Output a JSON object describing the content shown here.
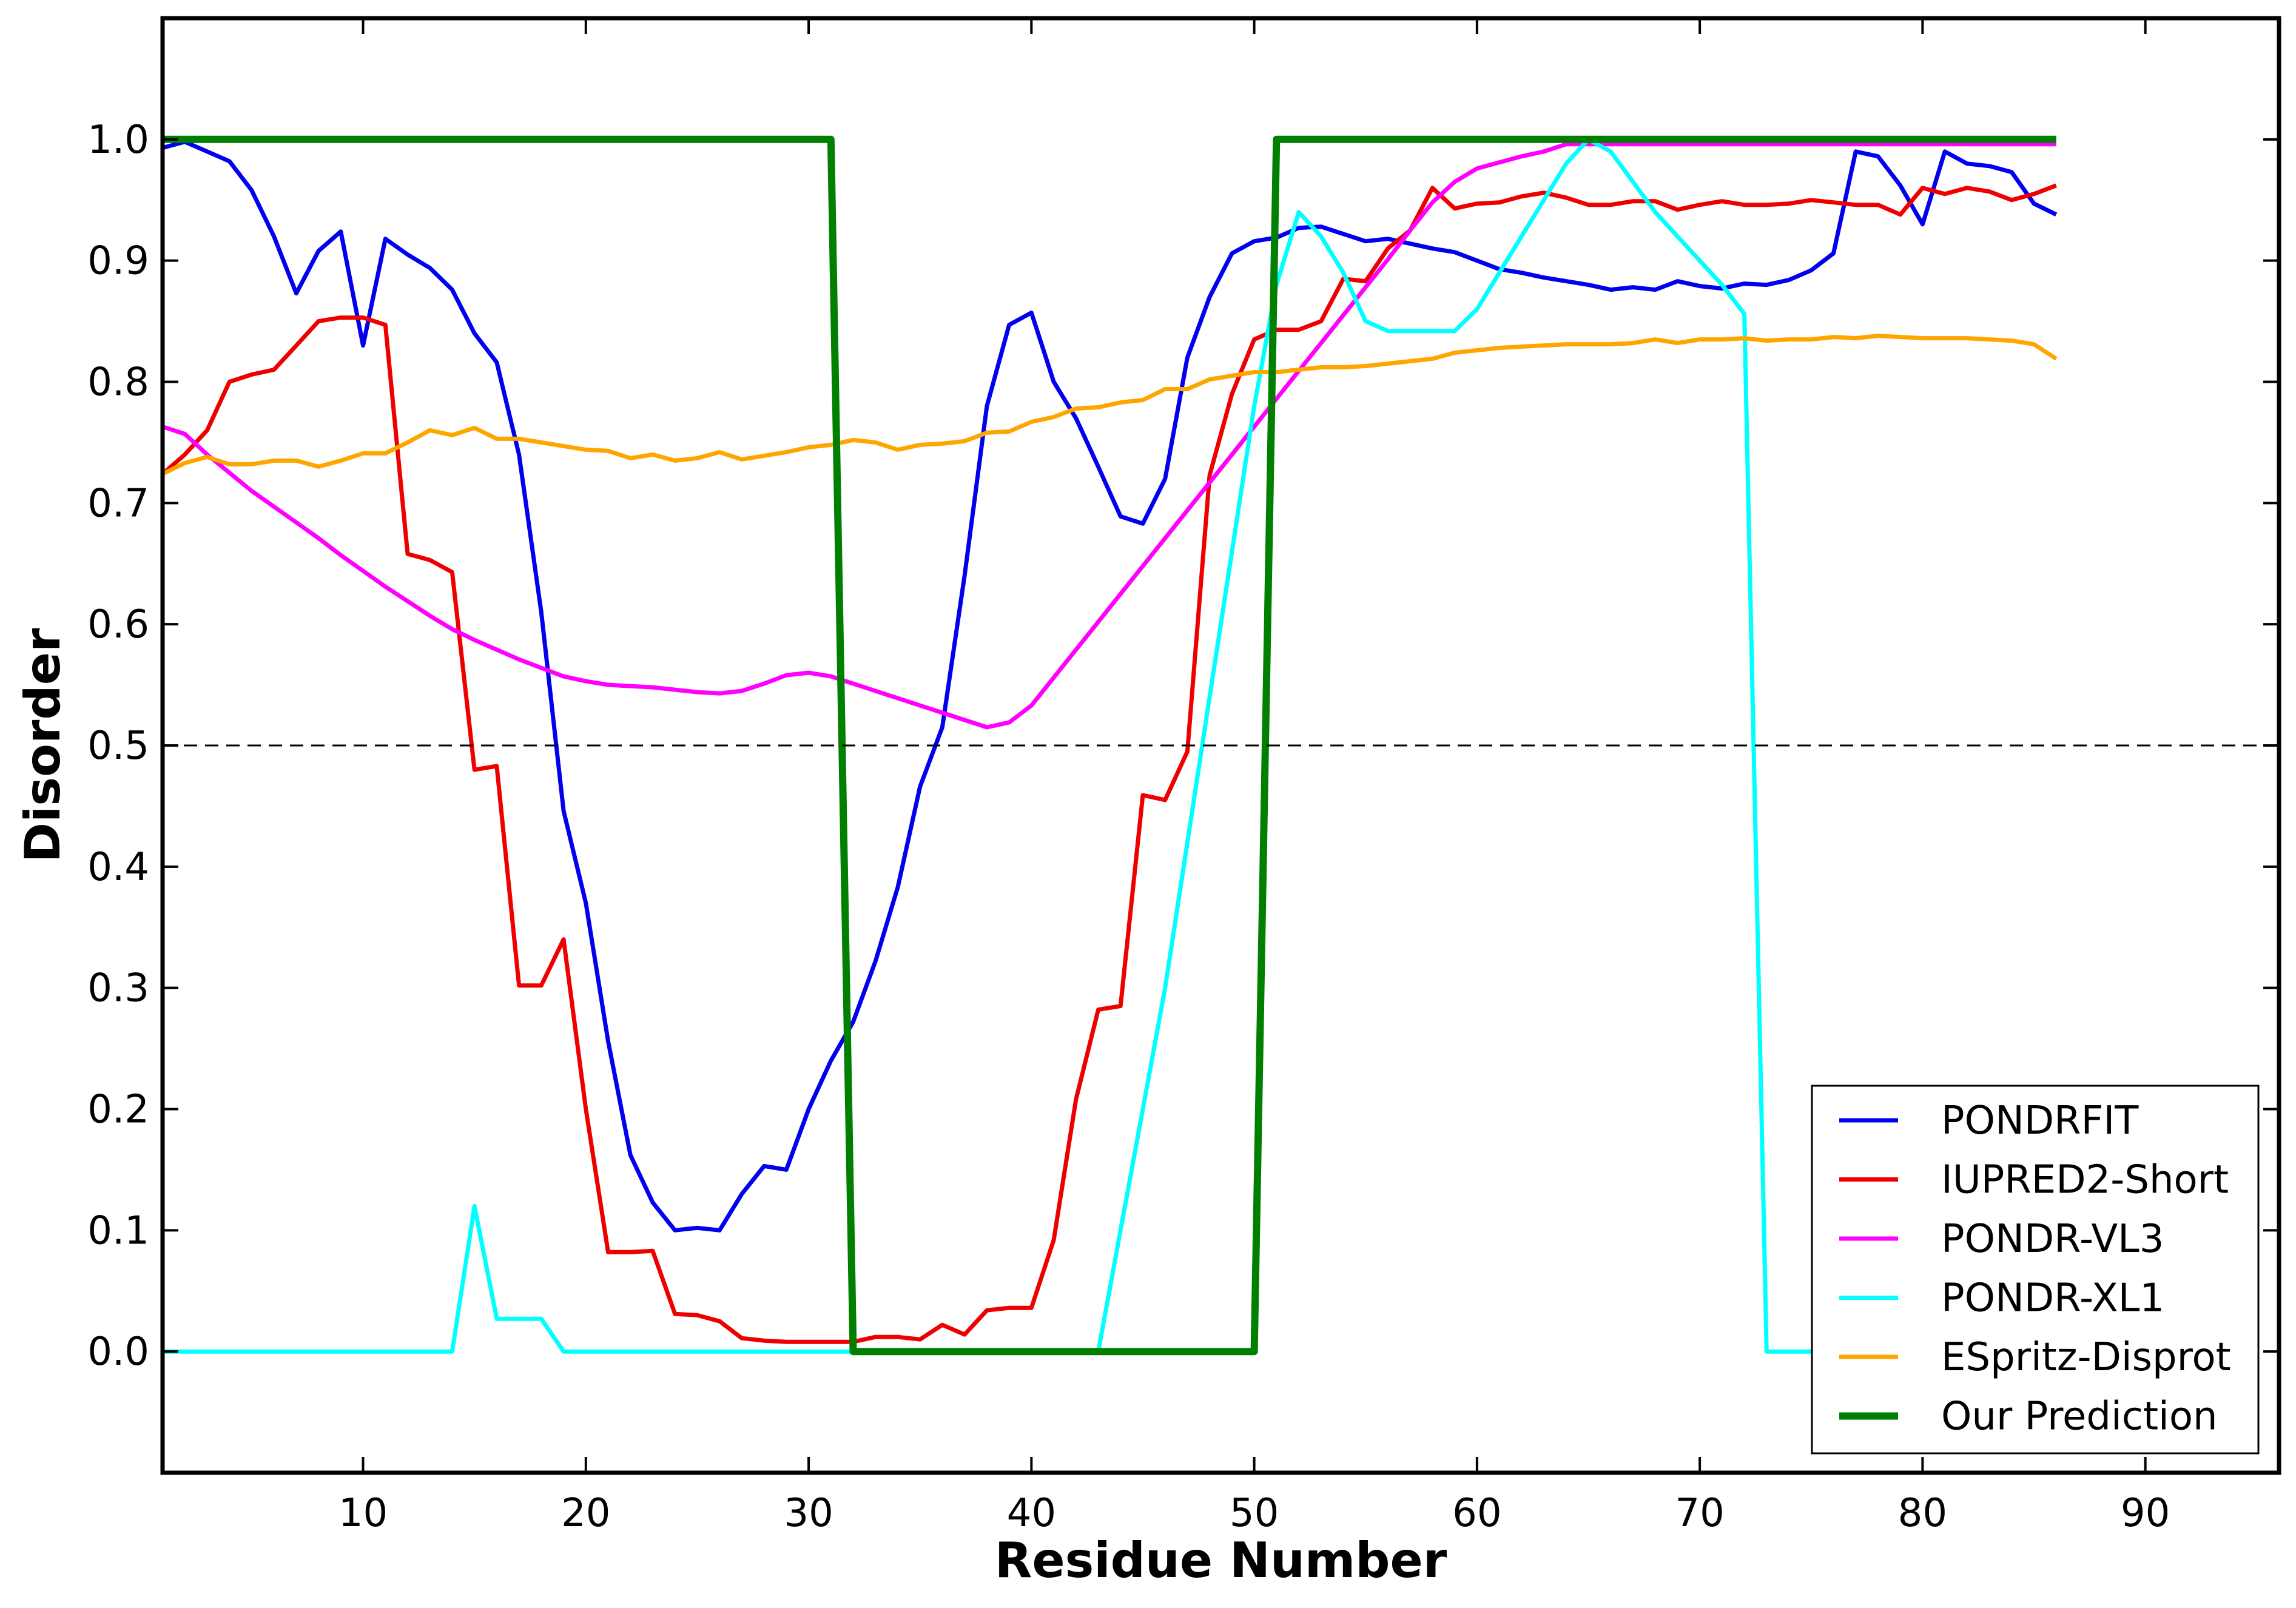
{
  "chart_data": {
    "type": "line",
    "title": "",
    "xlabel": "Residue Number",
    "ylabel": "Disorder",
    "xlim": [
      1,
      96
    ],
    "ylim": [
      -0.1,
      1.1
    ],
    "xticks": [
      10,
      20,
      30,
      40,
      50,
      60,
      70,
      80,
      90
    ],
    "yticks": [
      0.0,
      0.1,
      0.2,
      0.3,
      0.4,
      0.5,
      0.6,
      0.7,
      0.8,
      0.9,
      1.0
    ],
    "xtick_labels": [
      "10",
      "20",
      "30",
      "40",
      "50",
      "60",
      "70",
      "80",
      "90"
    ],
    "ytick_labels": [
      "0.0",
      "0.1",
      "0.2",
      "0.3",
      "0.4",
      "0.5",
      "0.6",
      "0.7",
      "0.8",
      "0.9",
      "1.0"
    ],
    "threshold": 0.5,
    "legend_position": "lower-right",
    "grid": false,
    "x": [
      1,
      2,
      3,
      4,
      5,
      6,
      7,
      8,
      9,
      10,
      11,
      12,
      13,
      14,
      15,
      16,
      17,
      18,
      19,
      20,
      21,
      22,
      23,
      24,
      25,
      26,
      27,
      28,
      29,
      30,
      31,
      32,
      33,
      34,
      35,
      36,
      37,
      38,
      39,
      40,
      41,
      42,
      43,
      44,
      45,
      46,
      47,
      48,
      49,
      50,
      51,
      52,
      53,
      54,
      55,
      56,
      57,
      58,
      59,
      60,
      61,
      62,
      63,
      64,
      65,
      66,
      67,
      68,
      69,
      70,
      71,
      72,
      73,
      74,
      75,
      76,
      77,
      78,
      79,
      80,
      81,
      82,
      83,
      84,
      85,
      86
    ],
    "series": [
      {
        "name": "PONDRFIT",
        "color": "#0000ee",
        "width": 7,
        "values": [
          0.993,
          0.998,
          0.99,
          0.982,
          0.958,
          0.92,
          0.873,
          0.908,
          0.924,
          0.83,
          0.918,
          0.905,
          0.894,
          0.876,
          0.84,
          0.816,
          0.74,
          0.61,
          0.446,
          0.37,
          0.256,
          0.162,
          0.123,
          0.1,
          0.102,
          0.1,
          0.13,
          0.153,
          0.15,
          0.2,
          0.24,
          0.272,
          0.322,
          0.383,
          0.466,
          0.515,
          0.64,
          0.78,
          0.847,
          0.857,
          0.8,
          0.77,
          0.73,
          0.689,
          0.683,
          0.72,
          0.82,
          0.87,
          0.906,
          0.916,
          0.919,
          0.927,
          0.928,
          0.922,
          0.916,
          0.918,
          0.914,
          0.91,
          0.907,
          0.9,
          0.893,
          0.89,
          0.886,
          0.883,
          0.88,
          0.876,
          0.878,
          0.876,
          0.883,
          0.879,
          0.877,
          0.881,
          0.88,
          0.884,
          0.892,
          0.906,
          0.99,
          0.986,
          0.962,
          0.93,
          0.99,
          0.98,
          0.978,
          0.973,
          0.947,
          0.938
        ]
      },
      {
        "name": "IUPRED2-Short",
        "color": "#ee0000",
        "width": 7,
        "values": [
          0.724,
          0.74,
          0.76,
          0.8,
          0.806,
          0.81,
          0.83,
          0.85,
          0.853,
          0.853,
          0.847,
          0.658,
          0.653,
          0.643,
          0.48,
          0.483,
          0.302,
          0.302,
          0.34,
          0.2,
          0.082,
          0.082,
          0.083,
          0.031,
          0.03,
          0.025,
          0.011,
          0.009,
          0.008,
          0.008,
          0.008,
          0.008,
          0.012,
          0.012,
          0.01,
          0.022,
          0.014,
          0.034,
          0.036,
          0.036,
          0.092,
          0.208,
          0.282,
          0.285,
          0.459,
          0.455,
          0.495,
          0.723,
          0.79,
          0.835,
          0.843,
          0.843,
          0.85,
          0.885,
          0.883,
          0.91,
          0.925,
          0.96,
          0.943,
          0.947,
          0.948,
          0.953,
          0.956,
          0.952,
          0.946,
          0.946,
          0.949,
          0.949,
          0.942,
          0.946,
          0.949,
          0.946,
          0.946,
          0.947,
          0.95,
          0.948,
          0.946,
          0.946,
          0.938,
          0.96,
          0.955,
          0.96,
          0.957,
          0.95,
          0.955,
          0.962
        ]
      },
      {
        "name": "PONDR-VL3",
        "color": "#ff00ff",
        "width": 7,
        "values": [
          0.763,
          0.757,
          0.74,
          0.725,
          0.71,
          0.697,
          0.684,
          0.671,
          0.657,
          0.644,
          0.631,
          0.619,
          0.607,
          0.596,
          0.587,
          0.579,
          0.571,
          0.564,
          0.557,
          0.553,
          0.55,
          0.549,
          0.548,
          0.546,
          0.544,
          0.543,
          0.545,
          0.551,
          0.558,
          0.56,
          0.557,
          0.551,
          0.545,
          0.539,
          0.533,
          0.527,
          0.521,
          0.515,
          0.519,
          0.533,
          0.556,
          0.579,
          0.602,
          0.625,
          0.648,
          0.671,
          0.694,
          0.717,
          0.74,
          0.763,
          0.786,
          0.809,
          0.832,
          0.855,
          0.878,
          0.901,
          0.925,
          0.948,
          0.965,
          0.976,
          0.981,
          0.986,
          0.99,
          0.996,
          0.996,
          0.996,
          0.996,
          0.996,
          0.996,
          0.996,
          0.996,
          0.996,
          0.996,
          0.996,
          0.996,
          0.996,
          0.996,
          0.996,
          0.996,
          0.996,
          0.996,
          0.996,
          0.996,
          0.996,
          0.996,
          0.996
        ]
      },
      {
        "name": "PONDR-XL1",
        "color": "#00ffff",
        "width": 7,
        "values": [
          0.0,
          0.0,
          0.0,
          0.0,
          0.0,
          0.0,
          0.0,
          0.0,
          0.0,
          0.0,
          0.0,
          0.0,
          0.0,
          0.0,
          0.12,
          0.027,
          0.027,
          0.027,
          0.0,
          0.0,
          0.0,
          0.0,
          0.0,
          0.0,
          0.0,
          0.0,
          0.0,
          0.0,
          0.0,
          0.0,
          0.0,
          0.0,
          0.0,
          0.0,
          0.0,
          0.0,
          0.0,
          0.0,
          0.0,
          0.0,
          0.0,
          0.0,
          0.0,
          0.1,
          0.2,
          0.3,
          0.42,
          0.54,
          0.66,
          0.78,
          0.88,
          0.94,
          0.92,
          0.89,
          0.85,
          0.842,
          0.842,
          0.842,
          0.842,
          0.86,
          0.89,
          0.92,
          0.95,
          0.98,
          1.0,
          0.99,
          0.965,
          0.94,
          0.92,
          0.9,
          0.88,
          0.856,
          0.0,
          0.0,
          0.0,
          0.0,
          0.0,
          0.0,
          0.0,
          0.0,
          0.0,
          0.0,
          0.0,
          0.0,
          0.0,
          0.0
        ]
      },
      {
        "name": "ESpritz-Disprot",
        "color": "#ffa500",
        "width": 7,
        "values": [
          0.724,
          0.733,
          0.738,
          0.732,
          0.732,
          0.735,
          0.735,
          0.73,
          0.735,
          0.741,
          0.741,
          0.75,
          0.76,
          0.756,
          0.762,
          0.753,
          0.753,
          0.75,
          0.747,
          0.744,
          0.743,
          0.737,
          0.74,
          0.735,
          0.737,
          0.742,
          0.736,
          0.739,
          0.742,
          0.746,
          0.748,
          0.752,
          0.75,
          0.744,
          0.748,
          0.749,
          0.751,
          0.758,
          0.759,
          0.767,
          0.771,
          0.778,
          0.779,
          0.783,
          0.785,
          0.794,
          0.794,
          0.802,
          0.805,
          0.808,
          0.808,
          0.81,
          0.812,
          0.812,
          0.813,
          0.815,
          0.817,
          0.819,
          0.824,
          0.826,
          0.828,
          0.829,
          0.83,
          0.831,
          0.831,
          0.831,
          0.832,
          0.835,
          0.832,
          0.835,
          0.835,
          0.836,
          0.834,
          0.835,
          0.835,
          0.837,
          0.836,
          0.838,
          0.837,
          0.836,
          0.836,
          0.836,
          0.835,
          0.834,
          0.831,
          0.819
        ]
      },
      {
        "name": "Our Prediction",
        "color": "#007f00",
        "width": 12,
        "values": [
          1,
          1,
          1,
          1,
          1,
          1,
          1,
          1,
          1,
          1,
          1,
          1,
          1,
          1,
          1,
          1,
          1,
          1,
          1,
          1,
          1,
          1,
          1,
          1,
          1,
          1,
          1,
          1,
          1,
          1,
          1,
          0,
          0,
          0,
          0,
          0,
          0,
          0,
          0,
          0,
          0,
          0,
          0,
          0,
          0,
          0,
          0,
          0,
          0,
          0,
          1,
          1,
          1,
          1,
          1,
          1,
          1,
          1,
          1,
          1,
          1,
          1,
          1,
          1,
          1,
          1,
          1,
          1,
          1,
          1,
          1,
          1,
          1,
          1,
          1,
          1,
          1,
          1,
          1,
          1,
          1,
          1,
          1,
          1,
          1,
          1
        ]
      }
    ]
  }
}
